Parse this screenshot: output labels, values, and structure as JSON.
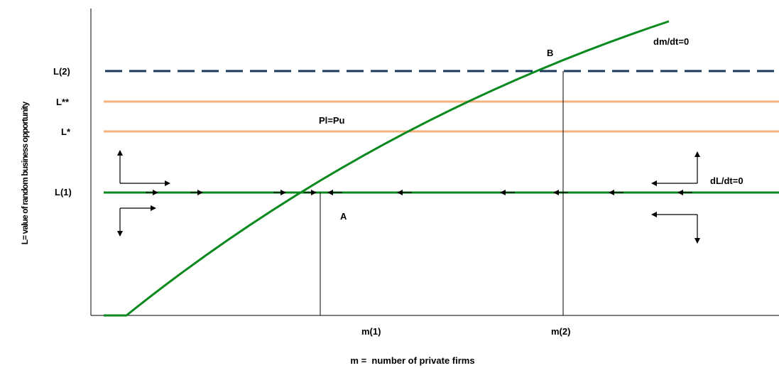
{
  "axes": {
    "x_label": "m =  number of private firms",
    "y_label": "L= value of random business opportunity"
  },
  "y_ticks": {
    "l2": "L(2)",
    "l_double_star": "L**",
    "l_star": "L*",
    "l1": "L(1)"
  },
  "x_ticks": {
    "m1": "m(1)",
    "m2": "m(2)"
  },
  "annotations": {
    "point_a": "A",
    "point_b": "B",
    "dm_dt": "dm/dt=0",
    "dl_dt": "dL/dt=0",
    "pl_pu": "Pl=Pu"
  },
  "colors": {
    "curve": "#0a8a1e",
    "l2_dashed": "#1a3a5c",
    "orange_lines": "#f6b07c",
    "axes": "#000000"
  }
}
